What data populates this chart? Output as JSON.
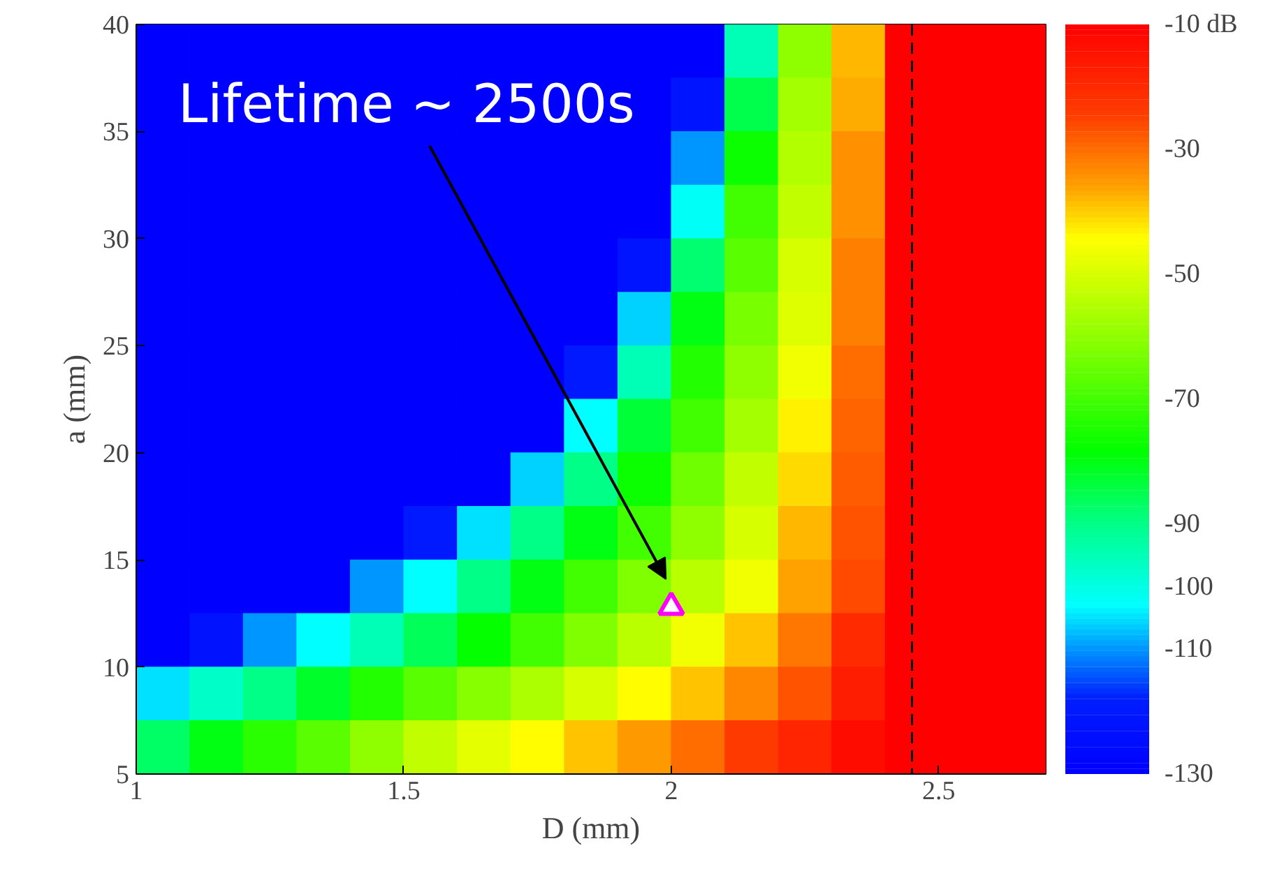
{
  "chart_data": {
    "type": "heatmap",
    "xlabel": "D (mm)",
    "ylabel": "a (mm)",
    "x": [
      1.05,
      1.15,
      1.25,
      1.35,
      1.45,
      1.55,
      1.65,
      1.75,
      1.85,
      1.95,
      2.05,
      2.15,
      2.25,
      2.35,
      2.45,
      2.55,
      2.65
    ],
    "y": [
      38.75,
      36.25,
      33.75,
      31.25,
      28.75,
      26.25,
      23.75,
      21.25,
      18.75,
      16.25,
      13.75,
      11.25,
      8.75,
      6.25
    ],
    "xlim": [
      1,
      2.7
    ],
    "xticks": [
      1,
      1.5,
      2,
      2.5
    ],
    "ylim": [
      5,
      40
    ],
    "yticks": [
      5,
      10,
      15,
      20,
      25,
      30,
      35,
      40
    ],
    "cells": [
      [
        -130,
        -130,
        -130,
        -130,
        -130,
        -130,
        -130,
        -130,
        -130,
        -130,
        -130,
        -95,
        -60,
        -38,
        -10,
        -10,
        -10
      ],
      [
        -130,
        -130,
        -130,
        -130,
        -130,
        -130,
        -130,
        -130,
        -130,
        -130,
        -122,
        -85,
        -57,
        -37,
        -10,
        -10,
        -10
      ],
      [
        -130,
        -130,
        -130,
        -130,
        -130,
        -130,
        -130,
        -130,
        -130,
        -130,
        -110,
        -77,
        -55,
        -34,
        -10,
        -10,
        -10
      ],
      [
        -130,
        -130,
        -130,
        -130,
        -130,
        -130,
        -130,
        -130,
        -130,
        -130,
        -102,
        -70,
        -53,
        -34,
        -10,
        -10,
        -10
      ],
      [
        -130,
        -130,
        -130,
        -130,
        -130,
        -130,
        -130,
        -130,
        -130,
        -122,
        -88,
        -67,
        -50,
        -32,
        -10,
        -10,
        -10
      ],
      [
        -130,
        -130,
        -130,
        -130,
        -130,
        -130,
        -130,
        -130,
        -130,
        -106,
        -80,
        -63,
        -49,
        -32,
        -10,
        -10,
        -10
      ],
      [
        -130,
        -130,
        -130,
        -130,
        -130,
        -130,
        -130,
        -130,
        -120,
        -95,
        -74,
        -60,
        -46,
        -30,
        -10,
        -10,
        -10
      ],
      [
        -130,
        -130,
        -130,
        -130,
        -130,
        -130,
        -130,
        -130,
        -103,
        -83,
        -70,
        -57,
        -43,
        -29,
        -10,
        -10,
        -10
      ],
      [
        -130,
        -130,
        -130,
        -130,
        -130,
        -130,
        -130,
        -106,
        -90,
        -77,
        -64,
        -53,
        -41,
        -28,
        -10,
        -10,
        -10
      ],
      [
        -130,
        -130,
        -130,
        -130,
        -130,
        -120,
        -105,
        -90,
        -80,
        -70,
        -60,
        -50,
        -38,
        -27,
        -10,
        -10,
        -10
      ],
      [
        -130,
        -130,
        -130,
        -130,
        -110,
        -103,
        -90,
        -80,
        -70,
        -62,
        -54,
        -46,
        -36,
        -26,
        -10,
        -10,
        -10
      ],
      [
        -130,
        -123,
        -110,
        -103,
        -95,
        -86,
        -78,
        -70,
        -62,
        -54,
        -46,
        -39,
        -31,
        -20,
        -10,
        -10,
        -10
      ],
      [
        -105,
        -97,
        -90,
        -82,
        -74,
        -67,
        -61,
        -56,
        -50,
        -44,
        -39,
        -33,
        -27,
        -17,
        -10,
        -10,
        -10
      ],
      [
        -87,
        -80,
        -73,
        -67,
        -60,
        -53,
        -48,
        -44,
        -39,
        -35,
        -30,
        -24,
        -19,
        -13,
        -10,
        -10,
        -10
      ]
    ],
    "clim": [
      -130,
      -10
    ],
    "cticks": [
      -130,
      -110,
      -100,
      -90,
      -70,
      -50,
      -30,
      {
        "value": -10,
        "label": "-10 dB"
      }
    ],
    "series": [
      {
        "type": "scatter",
        "x": [
          2.0
        ],
        "values": [
          12.8
        ],
        "color": "#ff00ff"
      }
    ],
    "marker": "triangle",
    "ref_lines": [
      {
        "axis": "x",
        "value": 2.45,
        "color": "#000000",
        "line_style": "dashed"
      }
    ],
    "annotations": [
      "Lifetime ~ 2500s"
    ]
  }
}
